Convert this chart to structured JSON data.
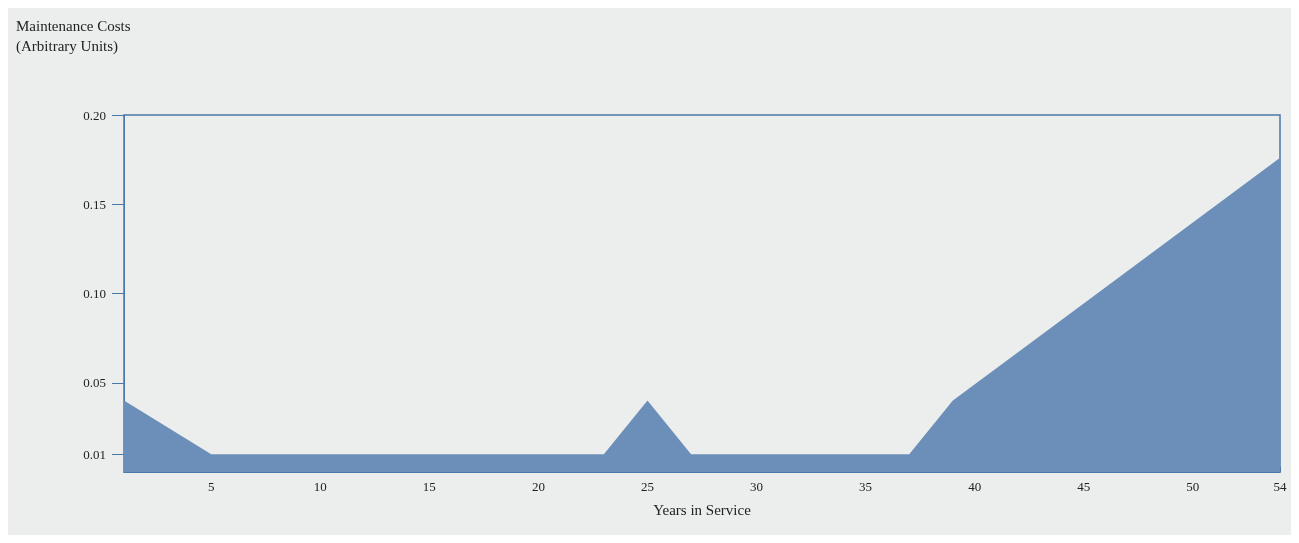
{
  "chart_data": {
    "type": "area",
    "xlabel": "Years in Service",
    "ylabel": "Maintenance Costs (Arbitrary Units)",
    "x": [
      1,
      5,
      23,
      25,
      27,
      37,
      39,
      54
    ],
    "series": [
      {
        "color": "#6c8fb9",
        "values": [
          0.04,
          0.01,
          0.01,
          0.04,
          0.01,
          0.01,
          0.04,
          0.176
        ]
      }
    ],
    "xlim": [
      1,
      54
    ],
    "xticks": [
      5,
      10,
      15,
      20,
      25,
      30,
      35,
      40,
      45,
      50,
      54
    ],
    "ylim": [
      0,
      0.2
    ],
    "yticks": [
      0.01,
      0.05,
      {
        "value": 0.1,
        "label": "0.10"
      },
      0.15,
      {
        "value": 0.2,
        "label": "0.20"
      }
    ]
  }
}
